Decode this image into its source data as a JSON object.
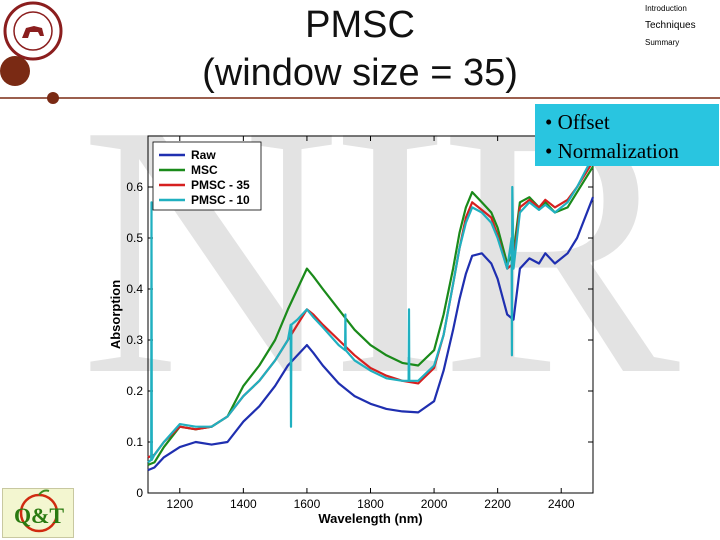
{
  "slide": {
    "title_line1": "PMSC",
    "title_line2": "(window size = 35)",
    "watermark": "NIR",
    "nav": [
      "Introduction",
      "Techniques",
      "Summary"
    ],
    "callout_items": [
      "• Offset",
      "• Normalization"
    ],
    "logo_text": "Q&T",
    "colors": {
      "callout": "#29c5e0",
      "dark_dot": "#7a2a14",
      "seal": "#8b1e1e"
    }
  },
  "chart_data": {
    "type": "line",
    "title": "",
    "xlabel": "Wavelength (nm)",
    "ylabel": "Absorption",
    "xlim": [
      1100,
      2500
    ],
    "ylim": [
      0,
      0.7
    ],
    "xticks": [
      1200,
      1400,
      1600,
      1800,
      2000,
      2200,
      2400
    ],
    "yticks": [
      0,
      0.1,
      0.2,
      0.3,
      0.4,
      0.5,
      0.6
    ],
    "legend_position": "top-left",
    "grid": false,
    "series": [
      {
        "name": "Raw",
        "color": "#1f2fb0",
        "x": [
          1100,
          1120,
          1150,
          1200,
          1250,
          1300,
          1350,
          1400,
          1450,
          1500,
          1540,
          1570,
          1600,
          1620,
          1650,
          1700,
          1750,
          1800,
          1850,
          1900,
          1950,
          2000,
          2030,
          2060,
          2080,
          2100,
          2120,
          2150,
          2180,
          2200,
          2230,
          2250,
          2270,
          2300,
          2330,
          2350,
          2380,
          2420,
          2450,
          2500
        ],
        "y": [
          0.045,
          0.05,
          0.07,
          0.09,
          0.1,
          0.095,
          0.1,
          0.14,
          0.17,
          0.21,
          0.25,
          0.27,
          0.29,
          0.275,
          0.25,
          0.215,
          0.19,
          0.175,
          0.165,
          0.16,
          0.158,
          0.18,
          0.24,
          0.32,
          0.38,
          0.43,
          0.465,
          0.47,
          0.45,
          0.42,
          0.35,
          0.34,
          0.44,
          0.46,
          0.45,
          0.47,
          0.45,
          0.47,
          0.5,
          0.58
        ]
      },
      {
        "name": "MSC",
        "color": "#1a8a1a",
        "x": [
          1100,
          1120,
          1150,
          1200,
          1250,
          1300,
          1350,
          1400,
          1450,
          1500,
          1540,
          1570,
          1600,
          1620,
          1650,
          1700,
          1750,
          1800,
          1850,
          1900,
          1950,
          2000,
          2030,
          2060,
          2080,
          2100,
          2120,
          2150,
          2180,
          2200,
          2230,
          2250,
          2270,
          2300,
          2330,
          2350,
          2380,
          2420,
          2450,
          2500
        ],
        "y": [
          0.055,
          0.06,
          0.09,
          0.13,
          0.125,
          0.13,
          0.15,
          0.21,
          0.25,
          0.3,
          0.36,
          0.4,
          0.44,
          0.425,
          0.4,
          0.36,
          0.32,
          0.29,
          0.27,
          0.255,
          0.25,
          0.28,
          0.35,
          0.44,
          0.51,
          0.56,
          0.59,
          0.57,
          0.55,
          0.52,
          0.45,
          0.47,
          0.57,
          0.58,
          0.56,
          0.57,
          0.55,
          0.56,
          0.59,
          0.64
        ]
      },
      {
        "name": "PMSC - 35",
        "color": "#d62020",
        "x": [
          1100,
          1120,
          1150,
          1200,
          1250,
          1300,
          1350,
          1400,
          1450,
          1500,
          1540,
          1570,
          1600,
          1620,
          1650,
          1700,
          1750,
          1800,
          1850,
          1900,
          1950,
          2000,
          2030,
          2060,
          2080,
          2100,
          2120,
          2150,
          2180,
          2200,
          2230,
          2250,
          2270,
          2300,
          2330,
          2350,
          2380,
          2420,
          2450,
          2500
        ],
        "y": [
          0.07,
          0.075,
          0.1,
          0.13,
          0.125,
          0.13,
          0.15,
          0.19,
          0.22,
          0.26,
          0.3,
          0.33,
          0.36,
          0.35,
          0.33,
          0.3,
          0.27,
          0.245,
          0.23,
          0.22,
          0.215,
          0.245,
          0.31,
          0.41,
          0.48,
          0.54,
          0.57,
          0.555,
          0.54,
          0.505,
          0.44,
          0.45,
          0.56,
          0.575,
          0.56,
          0.575,
          0.56,
          0.575,
          0.6,
          0.65
        ]
      },
      {
        "name": "PMSC - 10",
        "color": "#20b0c0",
        "x": [
          1100,
          1110,
          1111,
          1112,
          1120,
          1150,
          1200,
          1250,
          1300,
          1350,
          1400,
          1450,
          1500,
          1540,
          1549,
          1550,
          1551,
          1570,
          1600,
          1620,
          1650,
          1700,
          1720,
          1721,
          1722,
          1750,
          1800,
          1850,
          1900,
          1920,
          1921,
          1922,
          1950,
          2000,
          2030,
          2060,
          2080,
          2100,
          2120,
          2150,
          2180,
          2200,
          2230,
          2244,
          2245,
          2246,
          2250,
          2270,
          2300,
          2330,
          2350,
          2380,
          2420,
          2450,
          2500
        ],
        "y": [
          0.06,
          0.065,
          0.57,
          0.065,
          0.075,
          0.1,
          0.135,
          0.13,
          0.13,
          0.15,
          0.19,
          0.22,
          0.26,
          0.3,
          0.33,
          0.13,
          0.33,
          0.34,
          0.36,
          0.345,
          0.325,
          0.29,
          0.28,
          0.35,
          0.28,
          0.26,
          0.24,
          0.225,
          0.22,
          0.22,
          0.36,
          0.22,
          0.22,
          0.25,
          0.31,
          0.41,
          0.48,
          0.53,
          0.56,
          0.55,
          0.53,
          0.5,
          0.44,
          0.5,
          0.27,
          0.6,
          0.44,
          0.55,
          0.57,
          0.555,
          0.565,
          0.55,
          0.57,
          0.6,
          0.66
        ]
      }
    ]
  }
}
